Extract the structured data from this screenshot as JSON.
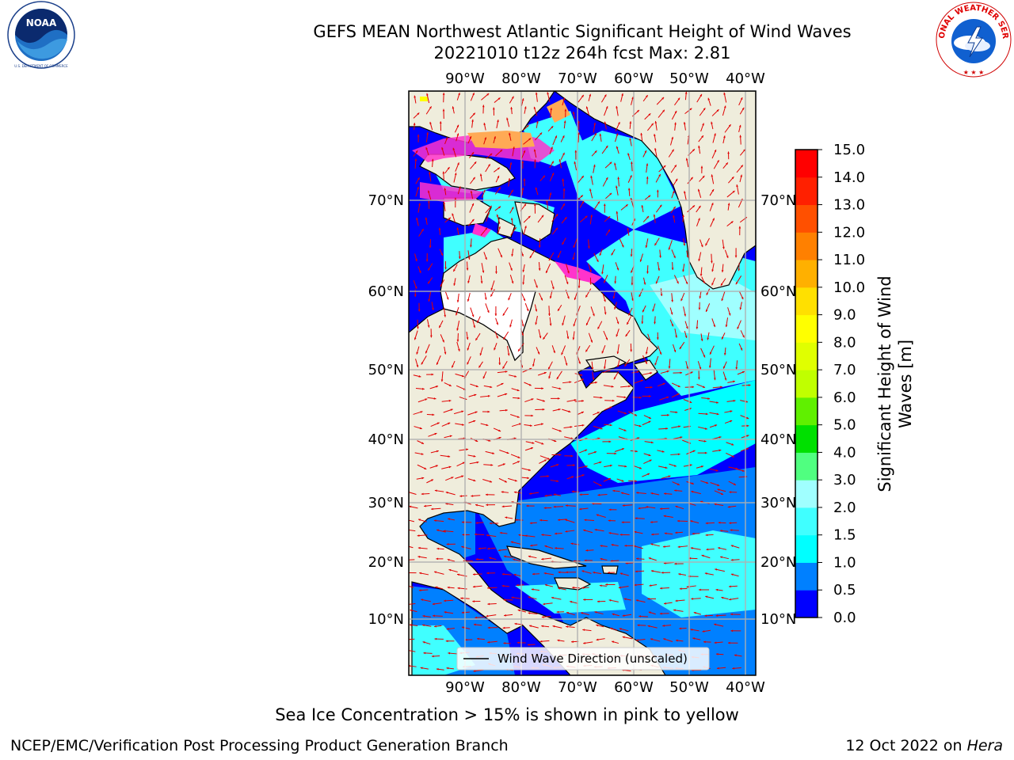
{
  "header": {
    "title_line1": "GEFS MEAN Northwest Atlantic Significant Height of Wind Waves",
    "title_line2": "20221010 t12z 264h fcst   Max: 2.81"
  },
  "logos": {
    "left": {
      "name": "NOAA",
      "ring_text": "NATIONAL OCEANIC AND ATMOSPHERIC ADMINISTRATION · U.S. DEPARTMENT OF COMMERCE"
    },
    "right": {
      "ring_text": "NATIONAL WEATHER SERVICE"
    }
  },
  "map": {
    "lon_ticks": [
      "90°W",
      "80°W",
      "70°W",
      "60°W",
      "50°W",
      "40°W"
    ],
    "lat_ticks": [
      "70°N",
      "60°N",
      "50°N",
      "40°N",
      "30°N",
      "20°N",
      "10°N"
    ],
    "lon_range": [
      -100,
      -38
    ],
    "lat_range": [
      2,
      80
    ],
    "legend_label": "Wind Wave Direction (unscaled)",
    "colors": {
      "land": "#efeddc",
      "coast": "#000000",
      "grid": "#b0b0b0",
      "arrow": "#e00000",
      "ice_pink": "#ff33cc",
      "ice_orange": "#ffaa55"
    }
  },
  "colorbar": {
    "label_line1": "Significant Height of Wind",
    "label_line2": "Waves [m]",
    "ticks": [
      "0.0",
      "0.5",
      "1.0",
      "1.5",
      "2.0",
      "3.0",
      "4.0",
      "5.0",
      "6.0",
      "7.0",
      "8.0",
      "9.0",
      "10.0",
      "11.0",
      "12.0",
      "13.0",
      "14.0",
      "15.0"
    ],
    "colors": [
      "#0000ff",
      "#0080ff",
      "#00ffff",
      "#40ffff",
      "#a0ffff",
      "#50ff80",
      "#00e000",
      "#60f000",
      "#c0ff00",
      "#e0ff00",
      "#ffff00",
      "#ffe000",
      "#ffb000",
      "#ff8000",
      "#ff5000",
      "#ff2000",
      "#ff0000"
    ]
  },
  "footer": {
    "ice_note": "Sea Ice Concentration > 15% is shown in pink to yellow",
    "credit": "NCEP/EMC/Verification Post Processing Product Generation Branch",
    "date": "12 Oct 2022 on",
    "machine": "Hera"
  }
}
